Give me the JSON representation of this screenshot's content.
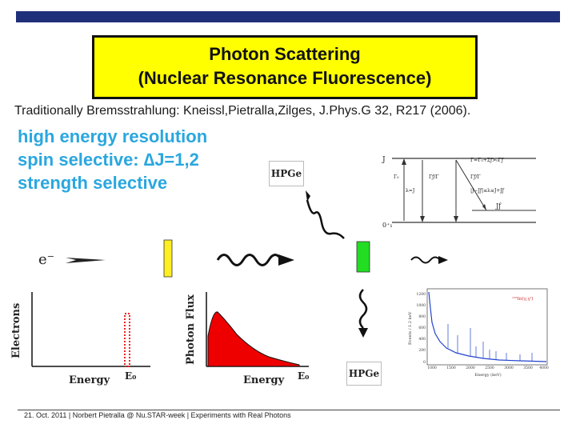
{
  "title": {
    "line1": "Photon Scattering",
    "line2": "(Nuclear Resonance Fluorescence)"
  },
  "subtitle": "Traditionally Bremsstrahlung: Kneissl,Pietralla,Zilges, J.Phys.G 32, R217 (2006).",
  "bullets": [
    "high energy resolution",
    "spin selective: ∆J=1,2",
    "strength selective"
  ],
  "setup": {
    "electron_label": "e⁻",
    "detector_top": "HPGe",
    "detector_bottom": "HPGe"
  },
  "level_scheme": {
    "upper_state": "J",
    "ground_state": "0⁺₁",
    "final_state": "Jƒ",
    "gamma0": "Γ₀",
    "lambda": "λ=J",
    "gammaf_ratio": "Γƒ/Γ",
    "gammaf_ratio2": "Γƒ/Γ",
    "total_width": "Γ=Γ₀+Σƒ>₀Γƒ",
    "selection_rule": "|J−Jƒ|≤λ≤J+Jƒ"
  },
  "electrons_plot": {
    "ylabel": "Electrons",
    "xlabel": "Energy",
    "e0": "E₀"
  },
  "flux_plot": {
    "ylabel": "Photon Flux",
    "xlabel": "Energy",
    "e0": "E₀"
  },
  "spectrum": {
    "legend": "¹¹⁵In(γ,γ')",
    "ylabel": "Events / 1.2 keV",
    "xlabel": "Energy (keV)",
    "y_ticks": [
      "1200",
      "1000",
      "800",
      "600",
      "400",
      "200",
      "0"
    ],
    "x_ticks": [
      "1000",
      "1500",
      "2000",
      "2500",
      "3000",
      "3500",
      "4000"
    ]
  },
  "footer": "21. Oct. 2011  |  Norbert Pietralla @ Nu.STAR-week  |  Experiments with Real Photons",
  "colors": {
    "top_bar": "#1f2f7a",
    "title_bg": "#ffff00",
    "bullet_text": "#2aa7df",
    "radiator": "#ffee22",
    "target": "#22dd22",
    "electron_peak": "#ee2222",
    "flux_fill": "#ee0000",
    "spectrum_line": "#2244cc"
  }
}
